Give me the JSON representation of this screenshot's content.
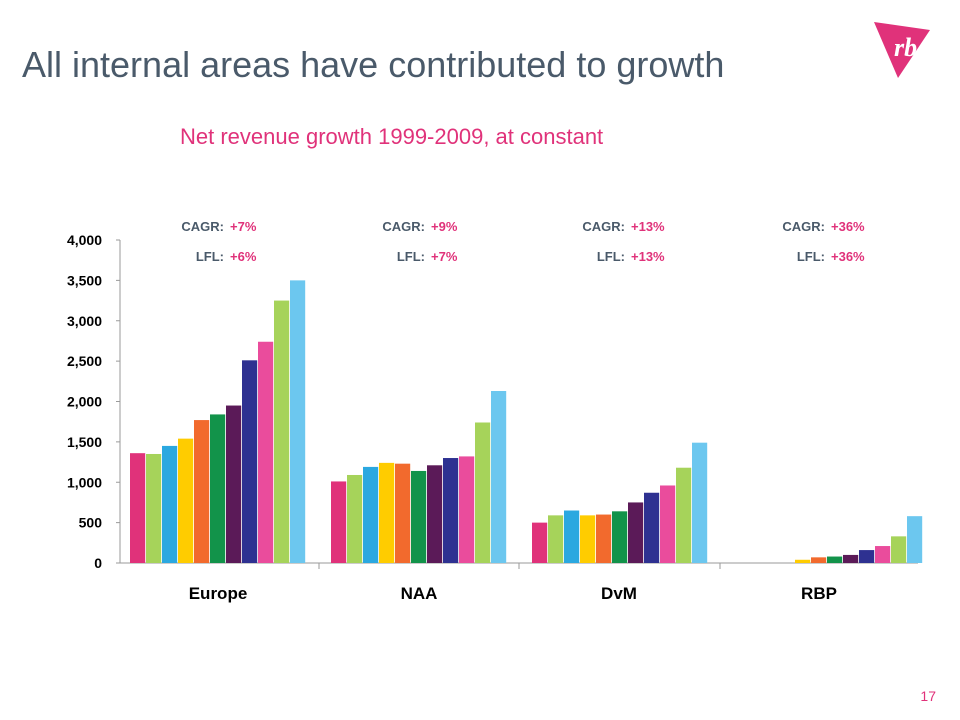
{
  "slide": {
    "title": "All internal areas have contributed to growth",
    "page_number": "17"
  },
  "logo": {
    "text": "rb",
    "icon": "rb-logo-icon",
    "color": "#e0327a"
  },
  "chart_data": {
    "type": "bar",
    "title": "Net revenue growth 1999-2009, at constant",
    "xlabel": "",
    "ylabel": "",
    "ylim": [
      0,
      4000
    ],
    "yticks": [
      0,
      500,
      1000,
      1500,
      2000,
      2500,
      3000,
      3500,
      4000
    ],
    "ytick_labels": [
      "0",
      "500",
      "1,000",
      "1,500",
      "2,000",
      "2,500",
      "3,000",
      "3,500",
      "4,000"
    ],
    "grid": false,
    "legend": "none",
    "bar_colors": [
      "#e0327a",
      "#a6d35a",
      "#2ba8e0",
      "#ffcc00",
      "#f26a2d",
      "#12934a",
      "#5b1a58",
      "#2e3191",
      "#ea4c9c",
      "#a6d35a",
      "#6cc7ef"
    ],
    "groups": [
      {
        "label": "Europe",
        "cagr_label": "CAGR:",
        "cagr": "+7%",
        "lfl_label": "LFL:",
        "lfl": "+6%",
        "values": [
          1360,
          1350,
          1450,
          1540,
          1770,
          1840,
          1950,
          2510,
          2740,
          3250,
          3500
        ]
      },
      {
        "label": "NAA",
        "cagr_label": "CAGR:",
        "cagr": "+9%",
        "lfl_label": "LFL:",
        "lfl": "+7%",
        "values": [
          1010,
          1090,
          1190,
          1240,
          1230,
          1140,
          1210,
          1300,
          1320,
          1740,
          2130
        ]
      },
      {
        "label": "DvM",
        "cagr_label": "CAGR:",
        "cagr": "+13%",
        "lfl_label": "LFL:",
        "lfl": "+13%",
        "values": [
          500,
          590,
          650,
          590,
          600,
          640,
          750,
          870,
          960,
          1180,
          1490
        ]
      },
      {
        "label": "RBP",
        "cagr_label": "CAGR:",
        "cagr": "+36%",
        "lfl_label": "LFL:",
        "lfl": "+36%",
        "values": [
          0,
          40,
          70,
          80,
          100,
          160,
          210,
          330,
          580
        ]
      }
    ]
  }
}
